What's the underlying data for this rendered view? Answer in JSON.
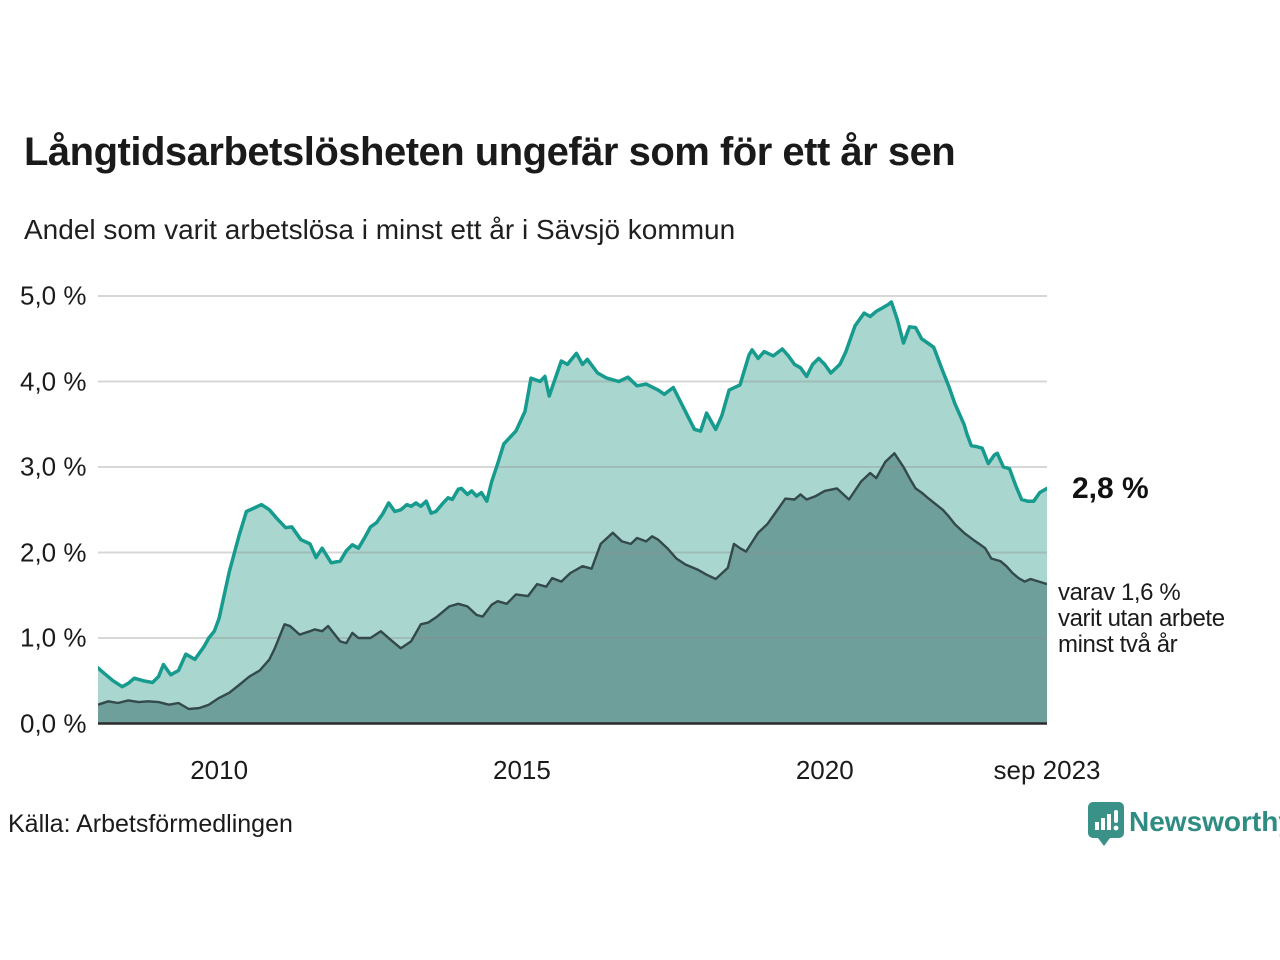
{
  "header": {
    "title": "Långtidsarbetslösheten ungefär som för ett år sen",
    "subtitle": "Andel som varit arbetslösa i minst ett år i Sävsjö kommun"
  },
  "annotations": {
    "latest_total": "2,8 %",
    "secondary_line1": "varav 1,6 %",
    "secondary_line2": "varit utan arbete",
    "secondary_line3": "minst två år"
  },
  "footer": {
    "source": "Källa: Arbetsförmedlingen",
    "brand": "Newsworthy"
  },
  "colors": {
    "total_line": "#169b8e",
    "total_fill": "#a9d6ce",
    "secondary_line": "#33494b",
    "secondary_fill": "#6f9f9a",
    "axis_line": "#2b2b2b",
    "gridline": "rgba(140,140,140,0.35)",
    "brand_teal": "#3a9187",
    "text": "#1a1a1a"
  },
  "chart_data": {
    "type": "area",
    "title": "Långtidsarbetslösheten ungefär som för ett år sen",
    "subtitle": "Andel som varit arbetslösa i minst ett år i Sävsjö kommun",
    "unit": "%",
    "x_axis": {
      "range": [
        2008.0,
        2023.67
      ],
      "ticks": [
        {
          "label": "2010",
          "year": 2010
        },
        {
          "label": "2015",
          "year": 2015
        },
        {
          "label": "2020",
          "year": 2020
        },
        {
          "label": "sep 2023",
          "year": 2023.67
        }
      ]
    },
    "y_axis": {
      "range": [
        0,
        5
      ],
      "grid": true,
      "ticks": [
        {
          "label": "0,0 %",
          "value": 0
        },
        {
          "label": "1,0 %",
          "value": 1
        },
        {
          "label": "2,0 %",
          "value": 2
        },
        {
          "label": "3,0 %",
          "value": 3
        },
        {
          "label": "4,0 %",
          "value": 4
        },
        {
          "label": "5,0 %",
          "value": 5
        }
      ]
    },
    "legend_position": "right-edge-annotations",
    "series": [
      {
        "name": "Andel som varit arbetslösa i minst ett år",
        "end_label": "2,8 %",
        "end_value": 2.8,
        "points": [
          [
            2008.0,
            0.65
          ],
          [
            2008.08,
            0.6
          ],
          [
            2008.25,
            0.5
          ],
          [
            2008.4,
            0.43
          ],
          [
            2008.5,
            0.47
          ],
          [
            2008.6,
            0.53
          ],
          [
            2008.75,
            0.5
          ],
          [
            2008.9,
            0.48
          ],
          [
            2009.0,
            0.55
          ],
          [
            2009.08,
            0.69
          ],
          [
            2009.2,
            0.57
          ],
          [
            2009.33,
            0.62
          ],
          [
            2009.45,
            0.81
          ],
          [
            2009.6,
            0.75
          ],
          [
            2009.75,
            0.9
          ],
          [
            2009.83,
            1.0
          ],
          [
            2009.92,
            1.08
          ],
          [
            2010.0,
            1.23
          ],
          [
            2010.17,
            1.78
          ],
          [
            2010.33,
            2.2
          ],
          [
            2010.45,
            2.48
          ],
          [
            2010.58,
            2.52
          ],
          [
            2010.7,
            2.56
          ],
          [
            2010.83,
            2.5
          ],
          [
            2010.95,
            2.4
          ],
          [
            2011.1,
            2.29
          ],
          [
            2011.2,
            2.3
          ],
          [
            2011.35,
            2.15
          ],
          [
            2011.5,
            2.1
          ],
          [
            2011.6,
            1.94
          ],
          [
            2011.7,
            2.05
          ],
          [
            2011.85,
            1.88
          ],
          [
            2012.0,
            1.9
          ],
          [
            2012.1,
            2.02
          ],
          [
            2012.2,
            2.09
          ],
          [
            2012.3,
            2.05
          ],
          [
            2012.4,
            2.17
          ],
          [
            2012.5,
            2.3
          ],
          [
            2012.6,
            2.35
          ],
          [
            2012.7,
            2.45
          ],
          [
            2012.8,
            2.58
          ],
          [
            2012.9,
            2.48
          ],
          [
            2013.0,
            2.5
          ],
          [
            2013.1,
            2.56
          ],
          [
            2013.17,
            2.54
          ],
          [
            2013.25,
            2.58
          ],
          [
            2013.33,
            2.54
          ],
          [
            2013.42,
            2.6
          ],
          [
            2013.5,
            2.46
          ],
          [
            2013.58,
            2.48
          ],
          [
            2013.7,
            2.58
          ],
          [
            2013.78,
            2.64
          ],
          [
            2013.85,
            2.62
          ],
          [
            2013.95,
            2.74
          ],
          [
            2014.0,
            2.75
          ],
          [
            2014.1,
            2.68
          ],
          [
            2014.17,
            2.72
          ],
          [
            2014.25,
            2.66
          ],
          [
            2014.33,
            2.7
          ],
          [
            2014.42,
            2.6
          ],
          [
            2014.5,
            2.83
          ],
          [
            2014.6,
            3.04
          ],
          [
            2014.7,
            3.27
          ],
          [
            2014.9,
            3.42
          ],
          [
            2015.05,
            3.65
          ],
          [
            2015.15,
            4.04
          ],
          [
            2015.3,
            4.0
          ],
          [
            2015.38,
            4.06
          ],
          [
            2015.45,
            3.83
          ],
          [
            2015.65,
            4.24
          ],
          [
            2015.75,
            4.2
          ],
          [
            2015.9,
            4.33
          ],
          [
            2016.0,
            4.2
          ],
          [
            2016.08,
            4.26
          ],
          [
            2016.25,
            4.1
          ],
          [
            2016.4,
            4.04
          ],
          [
            2016.6,
            4.0
          ],
          [
            2016.75,
            4.05
          ],
          [
            2016.9,
            3.95
          ],
          [
            2017.05,
            3.97
          ],
          [
            2017.25,
            3.9
          ],
          [
            2017.35,
            3.85
          ],
          [
            2017.5,
            3.93
          ],
          [
            2017.7,
            3.65
          ],
          [
            2017.85,
            3.44
          ],
          [
            2017.95,
            3.42
          ],
          [
            2018.05,
            3.63
          ],
          [
            2018.2,
            3.44
          ],
          [
            2018.3,
            3.6
          ],
          [
            2018.42,
            3.9
          ],
          [
            2018.6,
            3.96
          ],
          [
            2018.75,
            4.31
          ],
          [
            2018.8,
            4.37
          ],
          [
            2018.9,
            4.27
          ],
          [
            2019.0,
            4.35
          ],
          [
            2019.15,
            4.3
          ],
          [
            2019.3,
            4.38
          ],
          [
            2019.4,
            4.3
          ],
          [
            2019.5,
            4.2
          ],
          [
            2019.6,
            4.16
          ],
          [
            2019.7,
            4.06
          ],
          [
            2019.8,
            4.2
          ],
          [
            2019.9,
            4.27
          ],
          [
            2020.0,
            4.2
          ],
          [
            2020.1,
            4.1
          ],
          [
            2020.25,
            4.2
          ],
          [
            2020.35,
            4.35
          ],
          [
            2020.5,
            4.65
          ],
          [
            2020.65,
            4.8
          ],
          [
            2020.75,
            4.76
          ],
          [
            2020.85,
            4.82
          ],
          [
            2020.95,
            4.86
          ],
          [
            2021.05,
            4.9
          ],
          [
            2021.1,
            4.93
          ],
          [
            2021.2,
            4.72
          ],
          [
            2021.3,
            4.45
          ],
          [
            2021.4,
            4.64
          ],
          [
            2021.5,
            4.63
          ],
          [
            2021.6,
            4.5
          ],
          [
            2021.7,
            4.45
          ],
          [
            2021.8,
            4.4
          ],
          [
            2021.95,
            4.12
          ],
          [
            2022.05,
            3.94
          ],
          [
            2022.15,
            3.74
          ],
          [
            2022.3,
            3.5
          ],
          [
            2022.35,
            3.38
          ],
          [
            2022.42,
            3.25
          ],
          [
            2022.5,
            3.24
          ],
          [
            2022.6,
            3.22
          ],
          [
            2022.7,
            3.04
          ],
          [
            2022.8,
            3.14
          ],
          [
            2022.85,
            3.16
          ],
          [
            2022.95,
            3.0
          ],
          [
            2023.05,
            2.98
          ],
          [
            2023.15,
            2.79
          ],
          [
            2023.25,
            2.62
          ],
          [
            2023.35,
            2.6
          ],
          [
            2023.45,
            2.6
          ],
          [
            2023.55,
            2.7
          ],
          [
            2023.67,
            2.75
          ]
        ]
      },
      {
        "name": "varav utan arbete minst två år",
        "end_label": "varav 1,6 % varit utan arbete minst två år",
        "end_value": 1.6,
        "points": [
          [
            2008.0,
            0.22
          ],
          [
            2008.17,
            0.26
          ],
          [
            2008.33,
            0.24
          ],
          [
            2008.5,
            0.27
          ],
          [
            2008.67,
            0.25
          ],
          [
            2008.83,
            0.26
          ],
          [
            2009.0,
            0.25
          ],
          [
            2009.17,
            0.22
          ],
          [
            2009.33,
            0.24
          ],
          [
            2009.5,
            0.17
          ],
          [
            2009.67,
            0.18
          ],
          [
            2009.83,
            0.22
          ],
          [
            2010.0,
            0.3
          ],
          [
            2010.17,
            0.36
          ],
          [
            2010.33,
            0.45
          ],
          [
            2010.5,
            0.55
          ],
          [
            2010.67,
            0.62
          ],
          [
            2010.83,
            0.75
          ],
          [
            2010.92,
            0.88
          ],
          [
            2011.08,
            1.16
          ],
          [
            2011.17,
            1.14
          ],
          [
            2011.33,
            1.04
          ],
          [
            2011.5,
            1.08
          ],
          [
            2011.58,
            1.1
          ],
          [
            2011.7,
            1.08
          ],
          [
            2011.8,
            1.14
          ],
          [
            2012.0,
            0.96
          ],
          [
            2012.1,
            0.94
          ],
          [
            2012.2,
            1.06
          ],
          [
            2012.3,
            1.0
          ],
          [
            2012.5,
            1.0
          ],
          [
            2012.67,
            1.08
          ],
          [
            2012.83,
            0.98
          ],
          [
            2013.0,
            0.88
          ],
          [
            2013.17,
            0.96
          ],
          [
            2013.33,
            1.16
          ],
          [
            2013.45,
            1.18
          ],
          [
            2013.6,
            1.25
          ],
          [
            2013.8,
            1.37
          ],
          [
            2013.95,
            1.4
          ],
          [
            2014.1,
            1.37
          ],
          [
            2014.25,
            1.27
          ],
          [
            2014.35,
            1.25
          ],
          [
            2014.5,
            1.39
          ],
          [
            2014.6,
            1.43
          ],
          [
            2014.75,
            1.4
          ],
          [
            2014.9,
            1.51
          ],
          [
            2015.1,
            1.49
          ],
          [
            2015.25,
            1.63
          ],
          [
            2015.4,
            1.6
          ],
          [
            2015.5,
            1.7
          ],
          [
            2015.65,
            1.66
          ],
          [
            2015.8,
            1.76
          ],
          [
            2016.0,
            1.84
          ],
          [
            2016.15,
            1.81
          ],
          [
            2016.3,
            2.1
          ],
          [
            2016.5,
            2.23
          ],
          [
            2016.65,
            2.13
          ],
          [
            2016.8,
            2.1
          ],
          [
            2016.9,
            2.17
          ],
          [
            2017.05,
            2.13
          ],
          [
            2017.15,
            2.19
          ],
          [
            2017.25,
            2.15
          ],
          [
            2017.4,
            2.05
          ],
          [
            2017.55,
            1.93
          ],
          [
            2017.7,
            1.86
          ],
          [
            2017.9,
            1.8
          ],
          [
            2018.05,
            1.74
          ],
          [
            2018.2,
            1.69
          ],
          [
            2018.4,
            1.82
          ],
          [
            2018.5,
            2.1
          ],
          [
            2018.6,
            2.05
          ],
          [
            2018.7,
            2.01
          ],
          [
            2018.9,
            2.23
          ],
          [
            2019.05,
            2.33
          ],
          [
            2019.2,
            2.48
          ],
          [
            2019.35,
            2.63
          ],
          [
            2019.5,
            2.62
          ],
          [
            2019.6,
            2.68
          ],
          [
            2019.7,
            2.62
          ],
          [
            2019.85,
            2.66
          ],
          [
            2020.0,
            2.72
          ],
          [
            2020.2,
            2.75
          ],
          [
            2020.4,
            2.62
          ],
          [
            2020.6,
            2.83
          ],
          [
            2020.75,
            2.93
          ],
          [
            2020.85,
            2.87
          ],
          [
            2021.0,
            3.06
          ],
          [
            2021.15,
            3.16
          ],
          [
            2021.3,
            3.0
          ],
          [
            2021.4,
            2.87
          ],
          [
            2021.5,
            2.75
          ],
          [
            2021.6,
            2.7
          ],
          [
            2021.7,
            2.64
          ],
          [
            2021.95,
            2.5
          ],
          [
            2022.05,
            2.42
          ],
          [
            2022.15,
            2.33
          ],
          [
            2022.3,
            2.23
          ],
          [
            2022.45,
            2.15
          ],
          [
            2022.55,
            2.1
          ],
          [
            2022.65,
            2.05
          ],
          [
            2022.75,
            1.93
          ],
          [
            2022.9,
            1.9
          ],
          [
            2023.0,
            1.84
          ],
          [
            2023.1,
            1.76
          ],
          [
            2023.2,
            1.7
          ],
          [
            2023.3,
            1.66
          ],
          [
            2023.4,
            1.69
          ],
          [
            2023.67,
            1.63
          ]
        ]
      }
    ]
  }
}
